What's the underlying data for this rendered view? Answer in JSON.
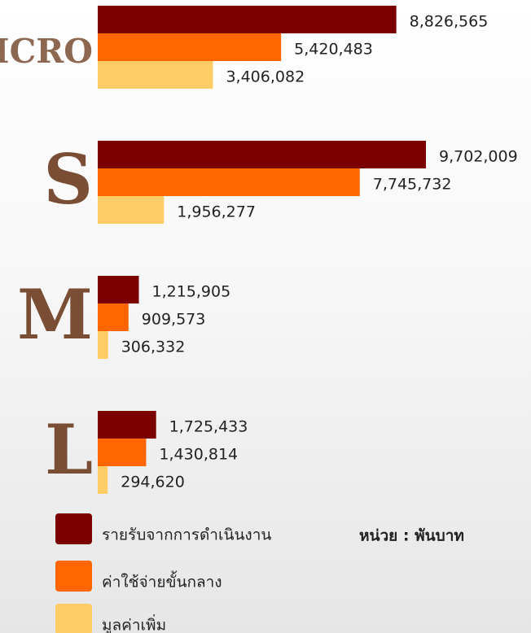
{
  "chart_data": {
    "type": "bar",
    "orientation": "horizontal",
    "categories": [
      "Micro",
      "S",
      "M",
      "L"
    ],
    "annotation": "หน่วย : พันบาท",
    "series": [
      {
        "name": "รายรับจากการดำเนินงาน",
        "color": "#7b0000",
        "values": [
          8826565,
          9702009,
          1215905,
          1725433
        ],
        "value_labels": [
          "8,826,565",
          "9,702,009",
          "1,215,905",
          "1,725,433"
        ]
      },
      {
        "name": "ค่าใช้จ่ายขั้นกลาง",
        "color": "#ff6600",
        "values": [
          5420483,
          7745732,
          909573,
          1430814
        ],
        "value_labels": [
          "5,420,483",
          "7,745,732",
          "909,573",
          "1,430,814"
        ]
      },
      {
        "name": "มูลค่าเพิ่ม",
        "color": "#ffcc66",
        "values": [
          3406082,
          1956277,
          306332,
          294620
        ],
        "value_labels": [
          "3,406,082",
          "1,956,277",
          "306,332",
          "294,620"
        ]
      }
    ]
  }
}
